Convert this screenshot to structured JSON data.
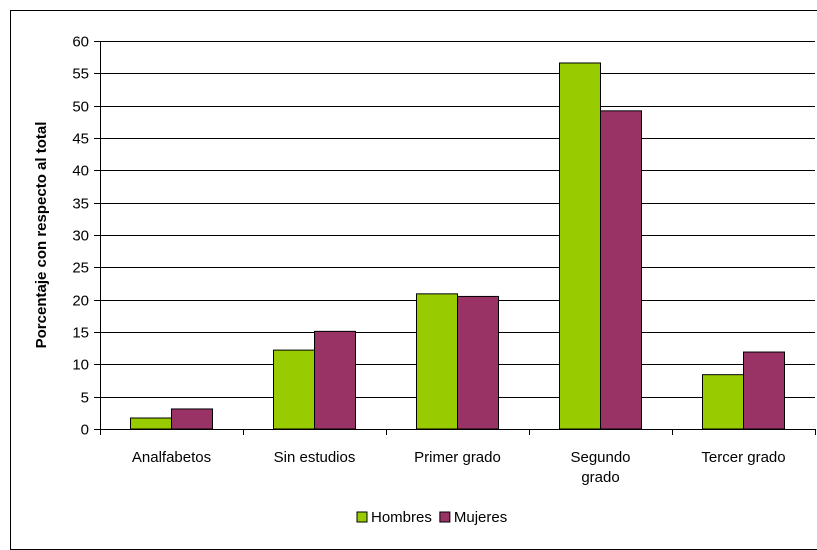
{
  "chart_data": {
    "type": "bar",
    "title": "",
    "xlabel": "",
    "ylabel": "Porcentaje con respecto al total",
    "ylim": [
      0,
      60
    ],
    "yticks": [
      0,
      5,
      10,
      15,
      20,
      25,
      30,
      35,
      40,
      45,
      50,
      55,
      60
    ],
    "grid": true,
    "legend_position": "bottom",
    "categories": [
      [
        "Analfabetos"
      ],
      [
        "Sin estudios"
      ],
      [
        "Primer grado"
      ],
      [
        "Segundo",
        "grado"
      ],
      [
        "Tercer grado"
      ]
    ],
    "series": [
      {
        "name": "Hombres",
        "color": "#99CC00",
        "values": [
          1.7,
          12.2,
          20.9,
          56.6,
          8.4
        ]
      },
      {
        "name": "Mujeres",
        "color": "#993366",
        "values": [
          3.1,
          15.1,
          20.5,
          49.2,
          11.9
        ]
      }
    ]
  }
}
